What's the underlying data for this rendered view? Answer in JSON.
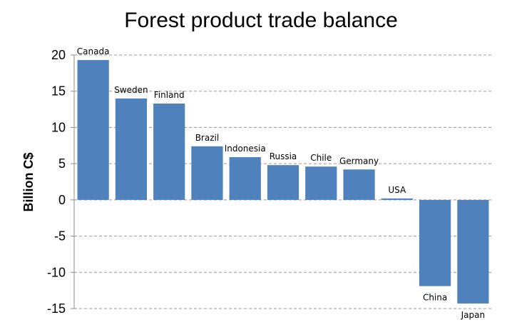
{
  "chart_data": {
    "type": "bar",
    "title": "Forest product trade balance",
    "ylabel": "Billion C$",
    "xlabel": "",
    "ylim": [
      -15,
      20
    ],
    "yticks": [
      20,
      15,
      10,
      5,
      0,
      -5,
      -10,
      -15
    ],
    "grid": true,
    "bar_color": "#4f81bd",
    "categories": [
      "Canada",
      "Sweden",
      "Finland",
      "Brazil",
      "Indonesia",
      "Russia",
      "Chile",
      "Germany",
      "USA",
      "China",
      "Japan"
    ],
    "values": [
      19.3,
      14.0,
      13.3,
      7.4,
      5.9,
      4.8,
      4.6,
      4.2,
      0.2,
      -11.9,
      -14.3
    ]
  }
}
